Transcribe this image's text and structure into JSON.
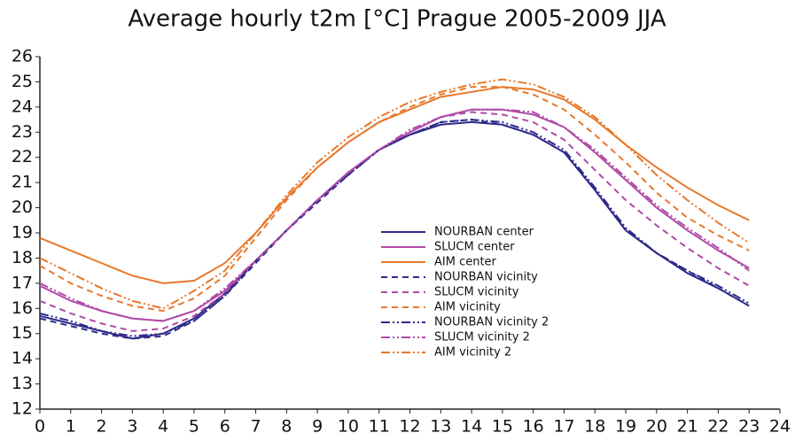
{
  "chart_data": {
    "type": "line",
    "title": "Average hourly t2m [°C] Prague 2005-2009 JJA",
    "x": [
      0,
      1,
      2,
      3,
      4,
      5,
      6,
      7,
      8,
      9,
      10,
      11,
      12,
      13,
      14,
      15,
      16,
      17,
      18,
      19,
      20,
      21,
      22,
      23
    ],
    "xlim": [
      0,
      24
    ],
    "xticks": [
      0,
      1,
      2,
      3,
      4,
      5,
      6,
      7,
      8,
      9,
      10,
      11,
      12,
      13,
      14,
      15,
      16,
      17,
      18,
      19,
      20,
      21,
      22,
      23,
      24
    ],
    "ylim": [
      12,
      26
    ],
    "yticks": [
      12,
      13,
      14,
      15,
      16,
      17,
      18,
      19,
      20,
      21,
      22,
      23,
      24,
      25,
      26
    ],
    "legend": "center",
    "series": [
      {
        "name": "NOURBAN center",
        "color": "#2e2a8a",
        "dash": "solid",
        "values": [
          15.7,
          15.4,
          15.1,
          14.8,
          15.0,
          15.6,
          16.6,
          17.9,
          19.1,
          20.3,
          21.4,
          22.3,
          22.9,
          23.3,
          23.4,
          23.3,
          22.9,
          22.2,
          20.7,
          19.1,
          18.2,
          17.4,
          16.8,
          16.1
        ]
      },
      {
        "name": "SLUCM center",
        "color": "#b04aa8",
        "dash": "solid",
        "values": [
          16.9,
          16.3,
          15.9,
          15.6,
          15.5,
          15.9,
          16.7,
          17.9,
          19.1,
          20.3,
          21.4,
          22.3,
          23.0,
          23.6,
          23.9,
          23.9,
          23.7,
          23.2,
          22.2,
          21.1,
          20.0,
          19.1,
          18.3,
          17.6
        ]
      },
      {
        "name": "AIM center",
        "color": "#e8782a",
        "dash": "solid",
        "values": [
          18.8,
          18.3,
          17.8,
          17.3,
          17.0,
          17.1,
          17.8,
          19.0,
          20.4,
          21.6,
          22.6,
          23.4,
          23.9,
          24.4,
          24.6,
          24.8,
          24.7,
          24.3,
          23.5,
          22.5,
          21.6,
          20.8,
          20.1,
          19.5
        ]
      },
      {
        "name": "NOURBAN vicinity",
        "color": "#2e2a8a",
        "dash": "dashed",
        "values": [
          15.6,
          15.3,
          15.0,
          14.8,
          14.9,
          15.5,
          16.5,
          17.8,
          19.1,
          20.2,
          21.3,
          22.3,
          22.9,
          23.4,
          23.5,
          23.3,
          22.9,
          22.2,
          20.7,
          19.1,
          18.2,
          17.5,
          16.8,
          16.1
        ]
      },
      {
        "name": "SLUCM vicinity",
        "color": "#b04aa8",
        "dash": "dashed",
        "values": [
          16.3,
          15.8,
          15.4,
          15.1,
          15.2,
          15.7,
          16.6,
          17.9,
          19.1,
          20.3,
          21.4,
          22.3,
          23.0,
          23.6,
          23.8,
          23.7,
          23.4,
          22.7,
          21.5,
          20.3,
          19.3,
          18.4,
          17.6,
          16.9
        ]
      },
      {
        "name": "AIM vicinity",
        "color": "#e8782a",
        "dash": "dashed",
        "values": [
          17.7,
          17.0,
          16.5,
          16.1,
          15.9,
          16.4,
          17.3,
          18.8,
          20.3,
          21.6,
          22.6,
          23.4,
          24.0,
          24.5,
          24.8,
          24.8,
          24.5,
          23.9,
          22.9,
          21.8,
          20.6,
          19.6,
          18.9,
          18.3
        ]
      },
      {
        "name": "NOURBAN vicinity 2",
        "color": "#2e2a8a",
        "dash": "dashdotdot",
        "values": [
          15.8,
          15.5,
          15.1,
          14.9,
          15.0,
          15.5,
          16.5,
          17.9,
          19.1,
          20.3,
          21.3,
          22.3,
          22.9,
          23.4,
          23.5,
          23.4,
          23.0,
          22.3,
          20.8,
          19.2,
          18.2,
          17.5,
          16.9,
          16.2
        ]
      },
      {
        "name": "SLUCM vicinity 2",
        "color": "#b04aa8",
        "dash": "dashdotdot",
        "values": [
          17.0,
          16.4,
          15.9,
          15.6,
          15.5,
          15.9,
          16.8,
          17.9,
          19.1,
          20.3,
          21.4,
          22.3,
          23.1,
          23.6,
          23.9,
          23.9,
          23.8,
          23.2,
          22.3,
          21.2,
          20.1,
          19.2,
          18.4,
          17.5
        ]
      },
      {
        "name": "AIM vicinity 2",
        "color": "#e8782a",
        "dash": "dashdotdot",
        "values": [
          18.0,
          17.4,
          16.8,
          16.3,
          16.0,
          16.7,
          17.5,
          19.0,
          20.5,
          21.8,
          22.8,
          23.6,
          24.2,
          24.6,
          24.9,
          25.1,
          24.9,
          24.4,
          23.6,
          22.5,
          21.3,
          20.3,
          19.4,
          18.6
        ]
      }
    ]
  }
}
